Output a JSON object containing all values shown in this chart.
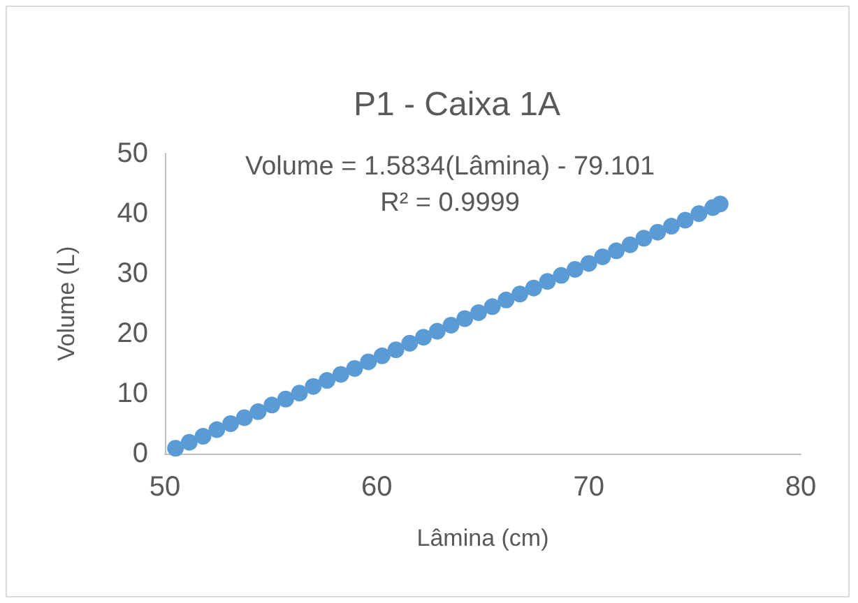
{
  "chart_data": {
    "type": "scatter",
    "title": "P1 - Caixa 1A",
    "xlabel": "Lâmina (cm)",
    "ylabel": "Volume (L)",
    "annotations": [
      "Volume = 1.5834(Lâmina) - 79.101",
      "R² = 0.9999"
    ],
    "x": [
      50.5,
      51.15,
      51.8,
      52.45,
      53.1,
      53.75,
      54.4,
      55.05,
      55.7,
      56.35,
      57.0,
      57.65,
      58.3,
      58.95,
      59.6,
      60.25,
      60.9,
      61.55,
      62.2,
      62.85,
      63.5,
      64.15,
      64.8,
      65.45,
      66.1,
      66.75,
      67.4,
      68.05,
      68.7,
      69.35,
      70.0,
      70.65,
      71.3,
      71.95,
      72.6,
      73.25,
      73.9,
      74.55,
      75.2,
      75.85,
      76.2
    ],
    "values": [
      0.9,
      1.9,
      2.9,
      4.0,
      5.0,
      6.0,
      7.0,
      8.1,
      9.1,
      10.1,
      11.2,
      12.2,
      13.2,
      14.2,
      15.3,
      16.3,
      17.3,
      18.4,
      19.4,
      20.4,
      21.4,
      22.5,
      23.5,
      24.5,
      25.6,
      26.6,
      27.6,
      28.7,
      29.7,
      30.7,
      31.7,
      32.8,
      33.8,
      34.8,
      35.9,
      36.9,
      37.9,
      38.9,
      40.0,
      41.0,
      41.6
    ],
    "color": "#5b9bd5",
    "marker": "circle",
    "xlim": [
      50,
      80
    ],
    "xticks": [
      50,
      60,
      70,
      80
    ],
    "ylim": [
      0,
      50
    ],
    "yticks": [
      0,
      10,
      20,
      30,
      40,
      50
    ],
    "grid": false
  }
}
